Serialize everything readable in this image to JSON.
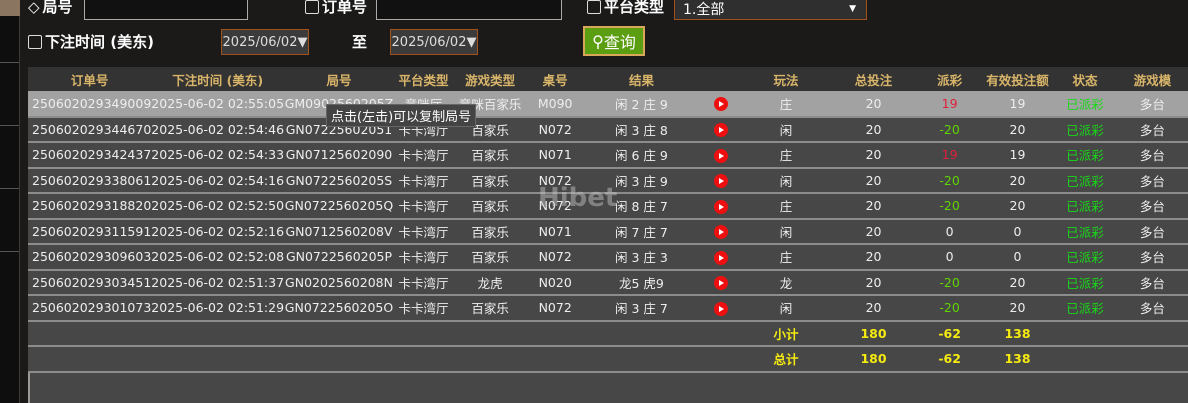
{
  "filters": {
    "round_label": "局号",
    "order_label": "订单号",
    "platform_label": "平台类型",
    "platform_value": "1.全部",
    "time_label": "下注时间 (美东)",
    "date_from": "2025/06/02▼",
    "to_label": "至",
    "date_to": "2025/06/02▼",
    "query_label": "查询"
  },
  "tooltip": "点击(左击)可以复制局号",
  "watermark": "Hibet",
  "columns": [
    "订单号",
    "下注时间 (美东)",
    "局号",
    "平台类型",
    "游戏类型",
    "桌号",
    "结果",
    "",
    "玩法",
    "总投注",
    "派彩",
    "有效投注额",
    "状态",
    "游戏模"
  ],
  "rows": [
    [
      "250602029349009",
      "2025-06-02 02:55:05",
      "GM0902560205Z",
      "竞咪厅",
      "竞咪百家乐",
      "M090",
      "闲 2 庄 9",
      "",
      "庄",
      "20",
      "19",
      "19",
      "已派彩",
      "多台"
    ],
    [
      "250602029344670",
      "2025-06-02 02:54:46",
      "GN07225602051",
      "卡卡湾厅",
      "百家乐",
      "N072",
      "闲 3 庄 8",
      "",
      "闲",
      "20",
      "-20",
      "20",
      "已派彩",
      "多台"
    ],
    [
      "250602029342437",
      "2025-06-02 02:54:33",
      "GN07125602090",
      "卡卡湾厅",
      "百家乐",
      "N071",
      "闲 6 庄 9",
      "",
      "庄",
      "20",
      "19",
      "19",
      "已派彩",
      "多台"
    ],
    [
      "250602029338061",
      "2025-06-02 02:54:16",
      "GN0722560205S",
      "卡卡湾厅",
      "百家乐",
      "N072",
      "闲 3 庄 9",
      "",
      "闲",
      "20",
      "-20",
      "20",
      "已派彩",
      "多台"
    ],
    [
      "250602029318820",
      "2025-06-02 02:52:50",
      "GN0722560205Q",
      "卡卡湾厅",
      "百家乐",
      "N072",
      "闲 8 庄 7",
      "",
      "庄",
      "20",
      "-20",
      "20",
      "已派彩",
      "多台"
    ],
    [
      "250602029311591",
      "2025-06-02 02:52:16",
      "GN0712560208V",
      "卡卡湾厅",
      "百家乐",
      "N071",
      "闲 7 庄 7",
      "",
      "闲",
      "20",
      "0",
      "0",
      "已派彩",
      "多台"
    ],
    [
      "250602029309603",
      "2025-06-02 02:52:08",
      "GN0722560205P",
      "卡卡湾厅",
      "百家乐",
      "N072",
      "闲 3 庄 3",
      "",
      "庄",
      "20",
      "0",
      "0",
      "已派彩",
      "多台"
    ],
    [
      "250602029303451",
      "2025-06-02 02:51:37",
      "GN0202560208N",
      "卡卡湾厅",
      "龙虎",
      "N020",
      "龙5 虎9",
      "",
      "龙",
      "20",
      "-20",
      "20",
      "已派彩",
      "多台"
    ],
    [
      "250602029301073",
      "2025-06-02 02:51:29",
      "GN0722560205O",
      "卡卡湾厅",
      "百家乐",
      "N072",
      "闲 3 庄 7",
      "",
      "闲",
      "20",
      "-20",
      "20",
      "已派彩",
      "多台"
    ]
  ],
  "subtotal": {
    "label": "小计",
    "total_bet": "180",
    "payout": "-62",
    "valid_bet": "138"
  },
  "total": {
    "label": "总计",
    "total_bet": "180",
    "payout": "-62",
    "valid_bet": "138"
  },
  "colors": {
    "positive_payout": "#e0203a",
    "negative_payout": "#5fd400",
    "status": "#18d918",
    "summary": "#f5ea10",
    "query_button": "#5c9e12"
  }
}
